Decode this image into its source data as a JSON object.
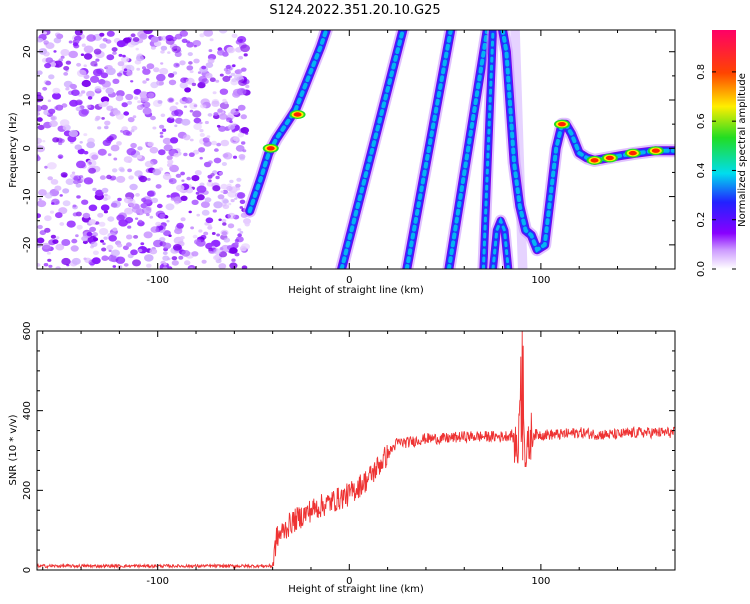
{
  "title": "S124.2022.351.20.10.G25",
  "chart_data": [
    {
      "type": "heatmap",
      "xlabel": "Height of straight line (km)",
      "ylabel": "Frequency (Hz)",
      "xlim": [
        -163,
        170
      ],
      "ylim": [
        -25,
        24.5
      ],
      "xticks": [
        -100,
        0,
        100
      ],
      "yticks": [
        20,
        10,
        0,
        -10,
        -20
      ],
      "colorbar": {
        "label": "Normalized spectral amplitude",
        "ticks": [
          "0.0",
          "0.2",
          "0.4",
          "0.6",
          "0.8"
        ],
        "range": [
          0,
          0.97
        ]
      },
      "features": [
        {
          "name": "noise-region",
          "x": [
            -163,
            -53
          ],
          "y": [
            -25,
            24.5
          ]
        },
        {
          "name": "track-curve",
          "points": [
            [
              -52,
              -13
            ],
            [
              -46,
              -6
            ],
            [
              -42,
              -1
            ],
            [
              -38,
              2
            ],
            [
              -33,
              5
            ],
            [
              -28,
              8
            ],
            [
              -24,
              12
            ],
            [
              -20,
              16
            ],
            [
              -15,
              21
            ],
            [
              -12,
              24.5
            ]
          ],
          "peaks": [
            [
              -41,
              0
            ],
            [
              -27,
              7
            ]
          ]
        },
        {
          "name": "track-1",
          "from": [
            -4,
            -25
          ],
          "to": [
            28,
            24.5
          ]
        },
        {
          "name": "track-2",
          "from": [
            30,
            -25
          ],
          "to": [
            53,
            24.5
          ]
        },
        {
          "name": "track-3",
          "from": [
            52,
            -25
          ],
          "to": [
            72,
            24.5
          ]
        },
        {
          "name": "track-4",
          "from": [
            70,
            -25
          ],
          "to": [
            75,
            24.5
          ]
        },
        {
          "name": "track-low",
          "points": [
            [
              75,
              -25
            ],
            [
              77,
              -17
            ],
            [
              79,
              -15
            ],
            [
              81,
              -17
            ],
            [
              83,
              -25
            ]
          ]
        },
        {
          "name": "track-right",
          "points": [
            [
              80,
              24.5
            ],
            [
              82,
              20
            ],
            [
              86,
              -3
            ],
            [
              89,
              -12
            ],
            [
              92,
              -17
            ],
            [
              95,
              -18
            ],
            [
              98,
              -21
            ],
            [
              102,
              -20
            ],
            [
              105,
              -10
            ],
            [
              108,
              0
            ],
            [
              111,
              5
            ],
            [
              113,
              5
            ],
            [
              116,
              3
            ],
            [
              120,
              -1
            ],
            [
              124,
              -2
            ],
            [
              128,
              -2.5
            ],
            [
              135,
              -2
            ],
            [
              142,
              -1.5
            ],
            [
              150,
              -1
            ],
            [
              160,
              -0.5
            ],
            [
              170,
              -0.5
            ]
          ],
          "peaks": [
            [
              111,
              5
            ],
            [
              128,
              -2.5
            ],
            [
              136,
              -2
            ],
            [
              148,
              -1
            ],
            [
              160,
              -0.5
            ]
          ]
        }
      ]
    },
    {
      "type": "line",
      "xlabel": "Height of straight line (km)",
      "ylabel": "SNR (10 * v/v)",
      "xlim": [
        -163,
        170
      ],
      "ylim": [
        0,
        600
      ],
      "xticks": [
        -100,
        0,
        100
      ],
      "yticks": [
        0,
        200,
        400,
        600
      ],
      "color": "#ee3333",
      "series": [
        {
          "x": [
            -163,
            -40,
            -38,
            -30,
            -20,
            -10,
            0,
            10,
            20,
            25,
            30,
            40,
            50,
            60,
            70,
            80,
            85,
            88,
            90,
            92,
            95,
            100,
            110,
            120,
            130,
            140,
            150,
            160,
            170
          ],
          "y": [
            10,
            10,
            80,
            120,
            150,
            170,
            190,
            230,
            290,
            320,
            320,
            330,
            330,
            335,
            335,
            335,
            340,
            300,
            580,
            270,
            340,
            340,
            340,
            345,
            340,
            340,
            345,
            345,
            345
          ]
        }
      ]
    }
  ]
}
